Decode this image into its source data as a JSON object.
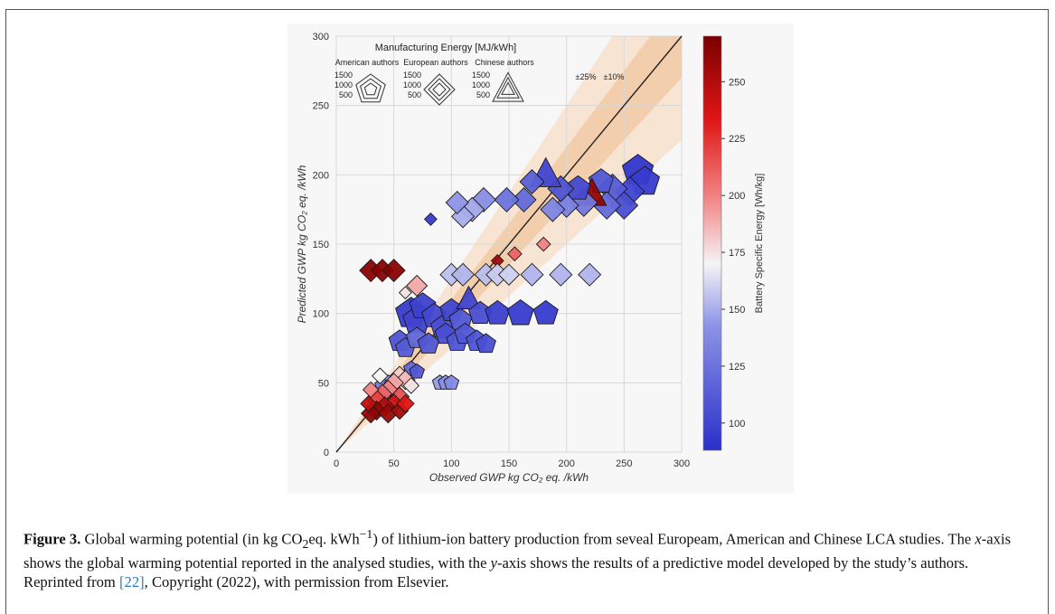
{
  "figure": {
    "label": "Figure 3.",
    "caption_text_1": "Global warming potential (in kg CO",
    "caption_sub_2": "2",
    "caption_text_2": "eq. kWh",
    "caption_sup": "−1",
    "caption_text_3": ") of lithium-ion battery production from seveal Europeam, American and Chinese LCA studies. The ",
    "caption_x": "x",
    "caption_text_4": "-axis shows the global warming potential reported in the analysed studies, with the ",
    "caption_y": "y",
    "caption_text_5": "-axis shows the results of a predictive model developed by the study’s authors. Reprinted from ",
    "caption_ref": "[22]",
    "caption_text_6": ", Copyright (2022), with permission from Elsevier."
  },
  "chart_data": {
    "type": "scatter",
    "xlabel": "Observed GWP kg CO₂ eq. /kWh",
    "ylabel": "Predicted GWP kg CO₂ eq. /kWh",
    "xlim": [
      0,
      300
    ],
    "ylim": [
      0,
      300
    ],
    "xticks": [
      0,
      50,
      100,
      150,
      200,
      250,
      300
    ],
    "yticks": [
      0,
      50,
      100,
      150,
      200,
      250,
      300
    ],
    "grid": true,
    "reference_line": "y = x",
    "bands": [
      "±25%",
      "±10%"
    ],
    "colorbar": {
      "label": "Battery Specific Energy [Wh/kg]",
      "range": [
        88,
        270
      ],
      "ticks": [
        100,
        125,
        150,
        175,
        200,
        225,
        250
      ],
      "colors": {
        "low": "#2a2fc9",
        "mid": "#f4f4f6",
        "high": "#7a0000"
      }
    },
    "legend": {
      "title": "Manufacturing Energy [MJ/kWh]",
      "groups": [
        {
          "name": "American authors",
          "shape": "pentagon",
          "levels": [
            "1500",
            "1000",
            "500"
          ]
        },
        {
          "name": "European authors",
          "shape": "diamond",
          "levels": [
            "1500",
            "1000",
            "500"
          ]
        },
        {
          "name": "Chinese authors",
          "shape": "triangle",
          "levels": [
            "1500",
            "1000",
            "500"
          ]
        }
      ]
    },
    "points": [
      {
        "x": 262,
        "y": 203,
        "shape": "pentagon",
        "energy": 1500,
        "se": 92
      },
      {
        "x": 268,
        "y": 195,
        "shape": "pentagon",
        "energy": 1400,
        "se": 95
      },
      {
        "x": 255,
        "y": 188,
        "shape": "diamond",
        "energy": 1300,
        "se": 100
      },
      {
        "x": 250,
        "y": 178,
        "shape": "diamond",
        "energy": 1200,
        "se": 105
      },
      {
        "x": 240,
        "y": 190,
        "shape": "diamond",
        "energy": 1300,
        "se": 112
      },
      {
        "x": 235,
        "y": 178,
        "shape": "diamond",
        "energy": 1200,
        "se": 120
      },
      {
        "x": 230,
        "y": 195,
        "shape": "pentagon",
        "energy": 1100,
        "se": 110
      },
      {
        "x": 222,
        "y": 186,
        "shape": "triangle",
        "energy": 1300,
        "se": 262
      },
      {
        "x": 215,
        "y": 180,
        "shape": "diamond",
        "energy": 1200,
        "se": 128
      },
      {
        "x": 210,
        "y": 190,
        "shape": "pentagon",
        "energy": 1100,
        "se": 102
      },
      {
        "x": 200,
        "y": 178,
        "shape": "diamond",
        "energy": 1000,
        "se": 132
      },
      {
        "x": 195,
        "y": 190,
        "shape": "diamond",
        "energy": 1100,
        "se": 108
      },
      {
        "x": 188,
        "y": 175,
        "shape": "diamond",
        "energy": 1000,
        "se": 135
      },
      {
        "x": 182,
        "y": 200,
        "shape": "triangle",
        "energy": 1400,
        "se": 100
      },
      {
        "x": 170,
        "y": 195,
        "shape": "diamond",
        "energy": 1000,
        "se": 115
      },
      {
        "x": 163,
        "y": 182,
        "shape": "diamond",
        "energy": 1000,
        "se": 120
      },
      {
        "x": 148,
        "y": 182,
        "shape": "diamond",
        "energy": 1000,
        "se": 125
      },
      {
        "x": 128,
        "y": 182,
        "shape": "diamond",
        "energy": 1000,
        "se": 140
      },
      {
        "x": 118,
        "y": 175,
        "shape": "diamond",
        "energy": 1000,
        "se": 148
      },
      {
        "x": 110,
        "y": 170,
        "shape": "diamond",
        "energy": 900,
        "se": 150
      },
      {
        "x": 105,
        "y": 180,
        "shape": "diamond",
        "energy": 900,
        "se": 143
      },
      {
        "x": 82,
        "y": 168,
        "shape": "diamond",
        "energy": 300,
        "se": 95
      },
      {
        "x": 140,
        "y": 138,
        "shape": "diamond",
        "energy": 300,
        "se": 255
      },
      {
        "x": 155,
        "y": 143,
        "shape": "diamond",
        "energy": 400,
        "se": 210
      },
      {
        "x": 180,
        "y": 150,
        "shape": "diamond",
        "energy": 400,
        "se": 200
      },
      {
        "x": 30,
        "y": 131,
        "shape": "diamond",
        "energy": 900,
        "se": 265
      },
      {
        "x": 40,
        "y": 131,
        "shape": "diamond",
        "energy": 900,
        "se": 265
      },
      {
        "x": 50,
        "y": 131,
        "shape": "diamond",
        "energy": 900,
        "se": 265
      },
      {
        "x": 70,
        "y": 120,
        "shape": "diamond",
        "energy": 800,
        "se": 190
      },
      {
        "x": 60,
        "y": 115,
        "shape": "diamond",
        "energy": 300,
        "se": 175
      },
      {
        "x": 100,
        "y": 128,
        "shape": "diamond",
        "energy": 900,
        "se": 155
      },
      {
        "x": 110,
        "y": 128,
        "shape": "diamond",
        "energy": 900,
        "se": 152
      },
      {
        "x": 130,
        "y": 128,
        "shape": "diamond",
        "energy": 900,
        "se": 155
      },
      {
        "x": 140,
        "y": 128,
        "shape": "diamond",
        "energy": 900,
        "se": 158
      },
      {
        "x": 150,
        "y": 128,
        "shape": "diamond",
        "energy": 800,
        "se": 160
      },
      {
        "x": 170,
        "y": 128,
        "shape": "diamond",
        "energy": 900,
        "se": 152
      },
      {
        "x": 195,
        "y": 128,
        "shape": "diamond",
        "energy": 900,
        "se": 152
      },
      {
        "x": 220,
        "y": 128,
        "shape": "diamond",
        "energy": 900,
        "se": 152
      },
      {
        "x": 65,
        "y": 100,
        "shape": "pentagon",
        "energy": 1500,
        "se": 95
      },
      {
        "x": 70,
        "y": 95,
        "shape": "pentagon",
        "energy": 1300,
        "se": 100
      },
      {
        "x": 75,
        "y": 105,
        "shape": "pentagon",
        "energy": 1200,
        "se": 98
      },
      {
        "x": 85,
        "y": 98,
        "shape": "pentagon",
        "energy": 1100,
        "se": 102
      },
      {
        "x": 92,
        "y": 90,
        "shape": "pentagon",
        "energy": 1000,
        "se": 105
      },
      {
        "x": 100,
        "y": 102,
        "shape": "pentagon",
        "energy": 1000,
        "se": 100
      },
      {
        "x": 108,
        "y": 95,
        "shape": "pentagon",
        "energy": 1000,
        "se": 110
      },
      {
        "x": 115,
        "y": 110,
        "shape": "triangle",
        "energy": 1000,
        "se": 100
      },
      {
        "x": 125,
        "y": 100,
        "shape": "pentagon",
        "energy": 1000,
        "se": 105
      },
      {
        "x": 140,
        "y": 100,
        "shape": "pentagon",
        "energy": 1100,
        "se": 97
      },
      {
        "x": 160,
        "y": 100,
        "shape": "pentagon",
        "energy": 1200,
        "se": 95
      },
      {
        "x": 182,
        "y": 100,
        "shape": "pentagon",
        "energy": 1100,
        "se": 95
      },
      {
        "x": 55,
        "y": 80,
        "shape": "pentagon",
        "energy": 900,
        "se": 108
      },
      {
        "x": 60,
        "y": 75,
        "shape": "pentagon",
        "energy": 800,
        "se": 112
      },
      {
        "x": 70,
        "y": 82,
        "shape": "pentagon",
        "energy": 900,
        "se": 118
      },
      {
        "x": 80,
        "y": 78,
        "shape": "pentagon",
        "energy": 900,
        "se": 110
      },
      {
        "x": 95,
        "y": 85,
        "shape": "pentagon",
        "energy": 900,
        "se": 105
      },
      {
        "x": 105,
        "y": 80,
        "shape": "pentagon",
        "energy": 900,
        "se": 108
      },
      {
        "x": 112,
        "y": 85,
        "shape": "pentagon",
        "energy": 900,
        "se": 110
      },
      {
        "x": 122,
        "y": 80,
        "shape": "pentagon",
        "energy": 900,
        "se": 108
      },
      {
        "x": 130,
        "y": 78,
        "shape": "pentagon",
        "energy": 800,
        "se": 105
      },
      {
        "x": 65,
        "y": 60,
        "shape": "pentagon",
        "energy": 500,
        "se": 120
      },
      {
        "x": 70,
        "y": 58,
        "shape": "pentagon",
        "energy": 500,
        "se": 110
      },
      {
        "x": 90,
        "y": 50,
        "shape": "pentagon",
        "energy": 500,
        "se": 145
      },
      {
        "x": 95,
        "y": 50,
        "shape": "pentagon",
        "energy": 500,
        "se": 140
      },
      {
        "x": 100,
        "y": 50,
        "shape": "pentagon",
        "energy": 500,
        "se": 138
      },
      {
        "x": 45,
        "y": 50,
        "shape": "pentagon",
        "energy": 500,
        "se": 145
      },
      {
        "x": 40,
        "y": 48,
        "shape": "pentagon",
        "energy": 500,
        "se": 130
      },
      {
        "x": 55,
        "y": 55,
        "shape": "diamond",
        "energy": 700,
        "se": 180
      },
      {
        "x": 60,
        "y": 52,
        "shape": "diamond",
        "energy": 700,
        "se": 185
      },
      {
        "x": 50,
        "y": 50,
        "shape": "diamond",
        "energy": 700,
        "se": 190
      },
      {
        "x": 45,
        "y": 45,
        "shape": "diamond",
        "energy": 700,
        "se": 200
      },
      {
        "x": 40,
        "y": 42,
        "shape": "diamond",
        "energy": 700,
        "se": 210
      },
      {
        "x": 35,
        "y": 38,
        "shape": "diamond",
        "energy": 700,
        "se": 220
      },
      {
        "x": 55,
        "y": 40,
        "shape": "diamond",
        "energy": 700,
        "se": 215
      },
      {
        "x": 50,
        "y": 35,
        "shape": "diamond",
        "energy": 700,
        "se": 240
      },
      {
        "x": 42,
        "y": 33,
        "shape": "diamond",
        "energy": 700,
        "se": 250
      },
      {
        "x": 35,
        "y": 30,
        "shape": "diamond",
        "energy": 700,
        "se": 260
      },
      {
        "x": 30,
        "y": 28,
        "shape": "diamond",
        "energy": 700,
        "se": 262
      },
      {
        "x": 45,
        "y": 28,
        "shape": "diamond",
        "energy": 700,
        "se": 258
      },
      {
        "x": 55,
        "y": 30,
        "shape": "diamond",
        "energy": 600,
        "se": 255
      },
      {
        "x": 60,
        "y": 35,
        "shape": "diamond",
        "energy": 600,
        "se": 235
      },
      {
        "x": 38,
        "y": 55,
        "shape": "diamond",
        "energy": 500,
        "se": 170
      },
      {
        "x": 30,
        "y": 45,
        "shape": "diamond",
        "energy": 500,
        "se": 200
      },
      {
        "x": 65,
        "y": 48,
        "shape": "diamond",
        "energy": 500,
        "se": 175
      },
      {
        "x": 28,
        "y": 35,
        "shape": "diamond",
        "energy": 500,
        "se": 245
      }
    ]
  }
}
